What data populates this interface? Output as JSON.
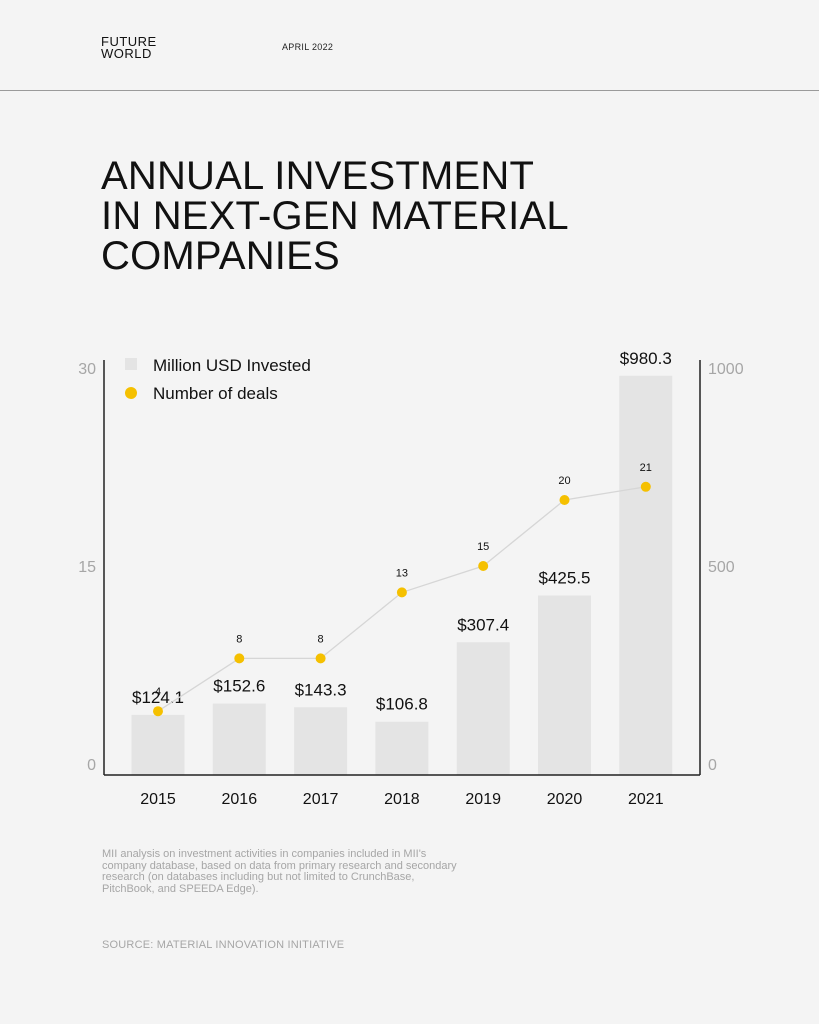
{
  "header": {
    "logo_line1": "FUTURE",
    "logo_line2": "WORLD",
    "date": "APRIL 2022"
  },
  "title_lines": [
    "ANNUAL INVESTMENT",
    "IN NEXT-GEN MATERIAL",
    "COMPANIES"
  ],
  "footnote": "MII analysis on investment activities in companies included in MII's company database, based on data from primary research and secondary research (on databases including but not limited to CrunchBase, PitchBook, and SPEEDA Edge).",
  "source": "SOURCE: MATERIAL INNOVATION INITIATIVE",
  "colors": {
    "bar": "#e4e4e4",
    "dot": "#f5c000",
    "line": "#d6d6d6",
    "axis": "#222222",
    "tick_label": "#a6a6a6"
  },
  "chart_data": {
    "type": "bar",
    "categories": [
      "2015",
      "2016",
      "2017",
      "2018",
      "2019",
      "2020",
      "2021"
    ],
    "series": [
      {
        "name": "Million USD Invested",
        "type": "bar",
        "axis": "right",
        "values": [
          124.1,
          152.6,
          143.3,
          106.8,
          307.4,
          425.5,
          980.3
        ],
        "labels": [
          "$124.1",
          "$152.6",
          "$143.3",
          "$106.8",
          "$307.4",
          "$425.5",
          "$980.3"
        ]
      },
      {
        "name": "Number of deals",
        "type": "line",
        "axis": "left",
        "values": [
          4,
          8,
          8,
          13,
          15,
          20,
          21
        ],
        "labels": [
          "4",
          "8",
          "8",
          "13",
          "15",
          "20",
          "21"
        ]
      }
    ],
    "left_axis": {
      "ylim": [
        0,
        30
      ],
      "ticks": [
        "0",
        "15",
        "30"
      ]
    },
    "right_axis": {
      "ylim": [
        0,
        1000
      ],
      "ticks": [
        "0",
        "500",
        "1000"
      ]
    },
    "legend_position": "top-left"
  }
}
